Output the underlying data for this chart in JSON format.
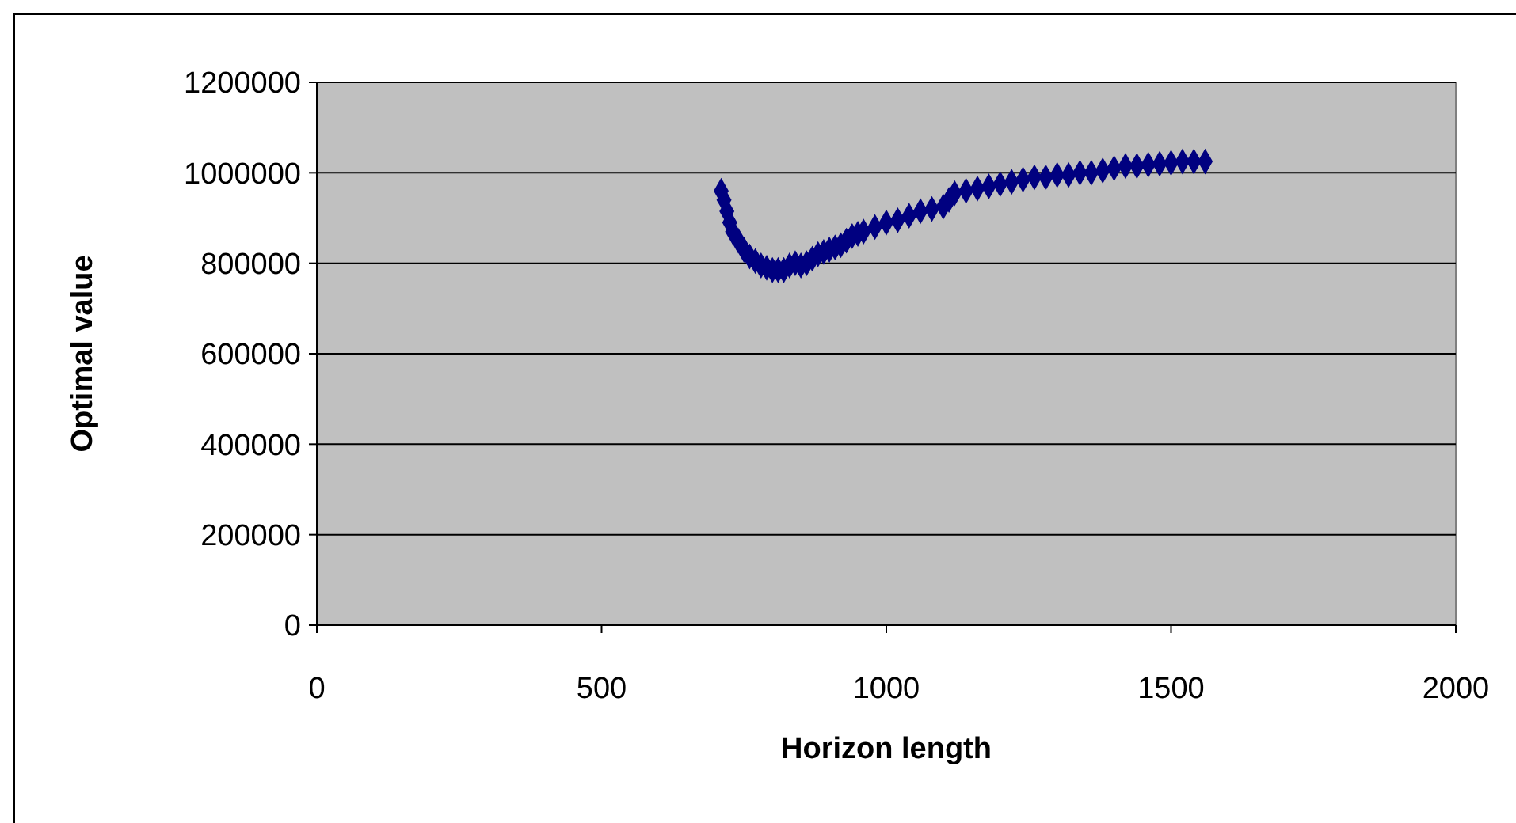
{
  "chart_data": {
    "type": "scatter",
    "xlabel": "Horizon length",
    "ylabel": "Optimal value",
    "xlim": [
      0,
      2000
    ],
    "xticks": [
      0,
      500,
      1000,
      1500,
      2000
    ],
    "ylim": [
      0,
      1200000
    ],
    "yticks": [
      0,
      200000,
      400000,
      600000,
      800000,
      1000000,
      1200000
    ],
    "grid": "y",
    "marker": "diamond",
    "series": [
      {
        "color": "#000080",
        "x": [
          710,
          715,
          720,
          725,
          730,
          740,
          750,
          760,
          770,
          780,
          790,
          800,
          810,
          820,
          830,
          840,
          850,
          860,
          870,
          880,
          890,
          900,
          910,
          920,
          930,
          940,
          950,
          960,
          980,
          1000,
          1020,
          1040,
          1060,
          1080,
          1100,
          1110,
          1120,
          1140,
          1160,
          1180,
          1200,
          1220,
          1240,
          1260,
          1280,
          1300,
          1320,
          1340,
          1360,
          1380,
          1400,
          1420,
          1440,
          1460,
          1480,
          1500,
          1520,
          1540,
          1560
        ],
        "values": [
          960000,
          940000,
          915000,
          890000,
          870000,
          850000,
          830000,
          815000,
          805000,
          795000,
          790000,
          785000,
          785000,
          785000,
          795000,
          800000,
          795000,
          800000,
          810000,
          820000,
          825000,
          830000,
          835000,
          840000,
          850000,
          860000,
          865000,
          870000,
          880000,
          890000,
          895000,
          905000,
          915000,
          920000,
          925000,
          940000,
          955000,
          960000,
          965000,
          970000,
          975000,
          980000,
          985000,
          990000,
          990000,
          995000,
          995000,
          1000000,
          1000000,
          1005000,
          1010000,
          1015000,
          1015000,
          1018000,
          1020000,
          1022000,
          1025000,
          1025000,
          1025000
        ]
      }
    ]
  }
}
